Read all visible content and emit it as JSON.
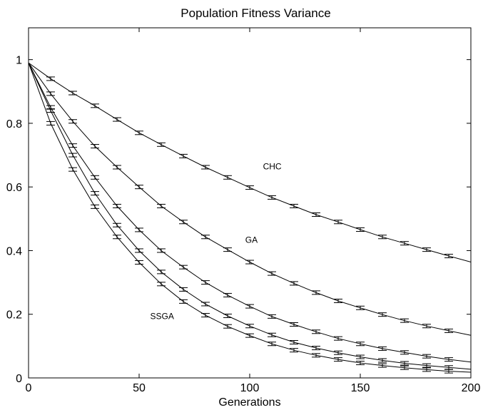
{
  "chart_data": {
    "type": "line",
    "title": "Population Fitness Variance",
    "xlabel": "Generations",
    "ylabel": "",
    "xlim": [
      0,
      200
    ],
    "ylim": [
      0,
      1.1
    ],
    "xticks": [
      0,
      50,
      100,
      150,
      200
    ],
    "yticks": [
      0,
      0.2,
      0.4,
      0.6,
      0.8,
      1
    ],
    "grid": false,
    "legend": "none",
    "x": [
      0,
      10,
      20,
      30,
      40,
      50,
      60,
      70,
      80,
      90,
      100,
      110,
      120,
      130,
      140,
      150,
      160,
      170,
      180,
      190,
      200
    ],
    "series": [
      {
        "name": "CHC",
        "values": [
          0.99,
          0.94,
          0.895,
          0.855,
          0.812,
          0.77,
          0.733,
          0.697,
          0.662,
          0.63,
          0.598,
          0.567,
          0.54,
          0.513,
          0.49,
          0.466,
          0.443,
          0.423,
          0.403,
          0.383,
          0.364
        ]
      },
      {
        "name": "GA",
        "values": [
          0.99,
          0.893,
          0.806,
          0.728,
          0.662,
          0.6,
          0.54,
          0.49,
          0.443,
          0.403,
          0.364,
          0.328,
          0.297,
          0.268,
          0.242,
          0.22,
          0.199,
          0.18,
          0.163,
          0.148,
          0.134
        ]
      },
      {
        "name": "",
        "values": [
          0.99,
          0.85,
          0.73,
          0.63,
          0.54,
          0.465,
          0.4,
          0.348,
          0.3,
          0.26,
          0.225,
          0.193,
          0.168,
          0.145,
          0.124,
          0.107,
          0.092,
          0.08,
          0.068,
          0.058,
          0.05
        ]
      },
      {
        "name": "",
        "values": [
          0.99,
          0.84,
          0.7,
          0.58,
          0.48,
          0.4,
          0.333,
          0.278,
          0.232,
          0.195,
          0.163,
          0.135,
          0.112,
          0.094,
          0.079,
          0.066,
          0.055,
          0.046,
          0.039,
          0.033,
          0.027
        ]
      },
      {
        "name": "SSGA",
        "values": [
          0.99,
          0.8,
          0.655,
          0.538,
          0.443,
          0.363,
          0.295,
          0.24,
          0.197,
          0.162,
          0.133,
          0.107,
          0.087,
          0.071,
          0.058,
          0.047,
          0.039,
          0.032,
          0.026,
          0.021,
          0.018
        ]
      }
    ],
    "annotations": [
      {
        "text": "CHC",
        "x": 106,
        "y": 0.655
      },
      {
        "text": "GA",
        "x": 98,
        "y": 0.425
      },
      {
        "text": "SSGA",
        "x": 55,
        "y": 0.185
      }
    ]
  }
}
